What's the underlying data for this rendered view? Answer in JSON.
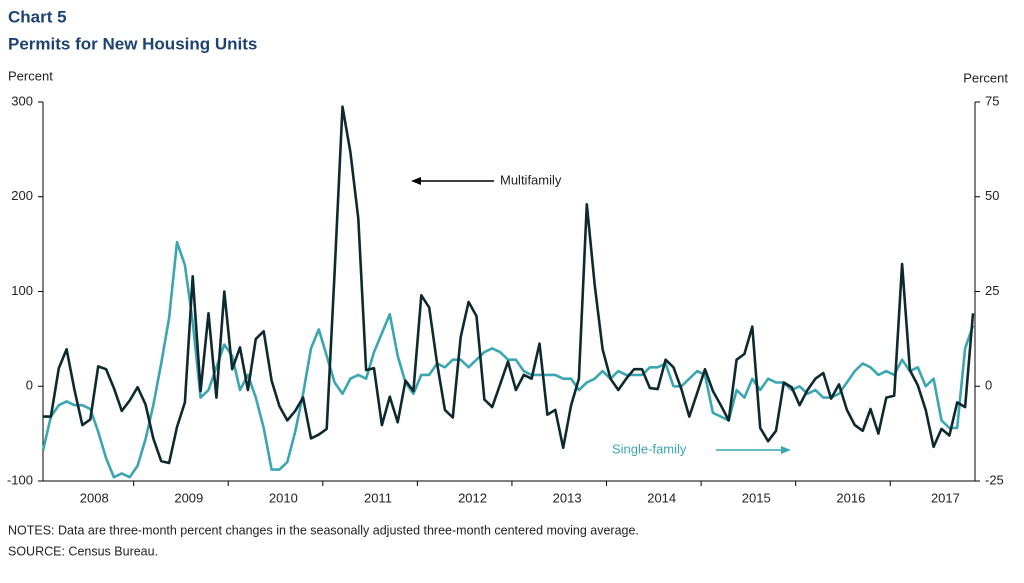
{
  "chart_data": {
    "type": "line",
    "title": "Chart 5",
    "subtitle": "Permits for New Housing Units",
    "ylabel": "Percent",
    "y2label": "Percent",
    "notes": "NOTES:  Data are three-month percent changes in the seasonally adjusted three-month centered moving average.",
    "source": "SOURCE:  Census Bureau.",
    "annotations": [
      "Multifamily",
      "Single-family"
    ],
    "categories": [
      null,
      null,
      null,
      null,
      null,
      null,
      "2008",
      null,
      null,
      null,
      null,
      null,
      null,
      null,
      null,
      null,
      null,
      null,
      "2009",
      null,
      null,
      null,
      null,
      null,
      null,
      null,
      null,
      null,
      null,
      null,
      "2010",
      null,
      null,
      null,
      null,
      null,
      null,
      null,
      null,
      null,
      null,
      null,
      "2011",
      null,
      null,
      null,
      null,
      null,
      null,
      null,
      null,
      null,
      null,
      null,
      "2012",
      null,
      null,
      null,
      null,
      null,
      null,
      null,
      null,
      null,
      null,
      null,
      "2013",
      null,
      null,
      null,
      null,
      null,
      null,
      null,
      null,
      null,
      null,
      null,
      "2014",
      null,
      null,
      null,
      null,
      null,
      null,
      null,
      null,
      null,
      null,
      null,
      "2015",
      null,
      null,
      null,
      null,
      null,
      null,
      null,
      null,
      null,
      null,
      null,
      "2016",
      null,
      null,
      null,
      null,
      null,
      null,
      null,
      null,
      null,
      null,
      null,
      "2017",
      null,
      null,
      null,
      null
    ],
    "ylim": [
      -100,
      300
    ],
    "yticks": [
      -100,
      0,
      100,
      200,
      300
    ],
    "y2lim": [
      -25,
      75
    ],
    "y2ticks": [
      -25,
      0,
      25,
      50,
      75
    ],
    "series": [
      {
        "name": "Multifamily",
        "color": "#0e2a2e",
        "values": [
          -32,
          -32,
          19,
          39,
          -4,
          -41,
          -35,
          21,
          18,
          -2,
          -26,
          -15,
          -1,
          -19,
          -55,
          -79,
          -81,
          -43,
          -17,
          116,
          -5,
          77,
          -12,
          100,
          18,
          41,
          -4,
          50,
          58,
          6,
          -21,
          -36,
          -26,
          -12,
          -55,
          -51,
          -45,
          120,
          295,
          247,
          177,
          17,
          19,
          -41,
          -11,
          -38,
          6,
          -5,
          96,
          83,
          24,
          -25,
          -33,
          52,
          89,
          74,
          -14,
          -22,
          2,
          26,
          -4,
          12,
          8,
          45,
          -30,
          -25,
          -65,
          -20,
          8,
          192,
          107,
          39,
          8,
          -4,
          8,
          18,
          18,
          -2,
          -3,
          28,
          20,
          -3,
          -32,
          -7,
          18,
          -5,
          -20,
          -36,
          28,
          34,
          63,
          -44,
          -58,
          -47,
          4,
          -1,
          -20,
          -4,
          8,
          14,
          -13,
          2,
          -25,
          -41,
          -47,
          -24,
          -50,
          -12,
          -10,
          129,
          17,
          1,
          -25,
          -64,
          -45,
          -52,
          -17,
          -22,
          77
        ]
      },
      {
        "name": "Single-family",
        "color": "#3aa7b0",
        "axis": "y2",
        "values": [
          -17,
          -8,
          -5,
          -4,
          -5,
          -5,
          -6,
          -12,
          -19,
          -24,
          -23,
          -24,
          -21,
          -14,
          -5,
          6,
          18,
          38,
          32,
          17,
          -3,
          -1,
          5,
          11,
          8,
          -1,
          3,
          -3,
          -11,
          -22,
          -22,
          -20,
          -12,
          -2,
          10,
          15,
          8,
          1,
          -2,
          2,
          3,
          2,
          9,
          14,
          19,
          8,
          1,
          -2,
          3,
          3,
          6,
          5,
          7,
          7,
          5,
          7,
          9,
          10,
          9,
          7,
          7,
          4,
          3,
          3,
          3,
          3,
          2,
          2,
          -1,
          1,
          2,
          4,
          2,
          4,
          3,
          3,
          3,
          5,
          5,
          6,
          0,
          0,
          2,
          4,
          3,
          -7,
          -8,
          -9,
          -1,
          -3,
          2,
          -1,
          2,
          1,
          1,
          -1,
          0,
          -2,
          -1,
          -3,
          -3,
          -2,
          1,
          4,
          6,
          5,
          3,
          4,
          3,
          7,
          4,
          5,
          0,
          2,
          -9,
          -11,
          -11,
          10,
          16
        ]
      }
    ]
  }
}
